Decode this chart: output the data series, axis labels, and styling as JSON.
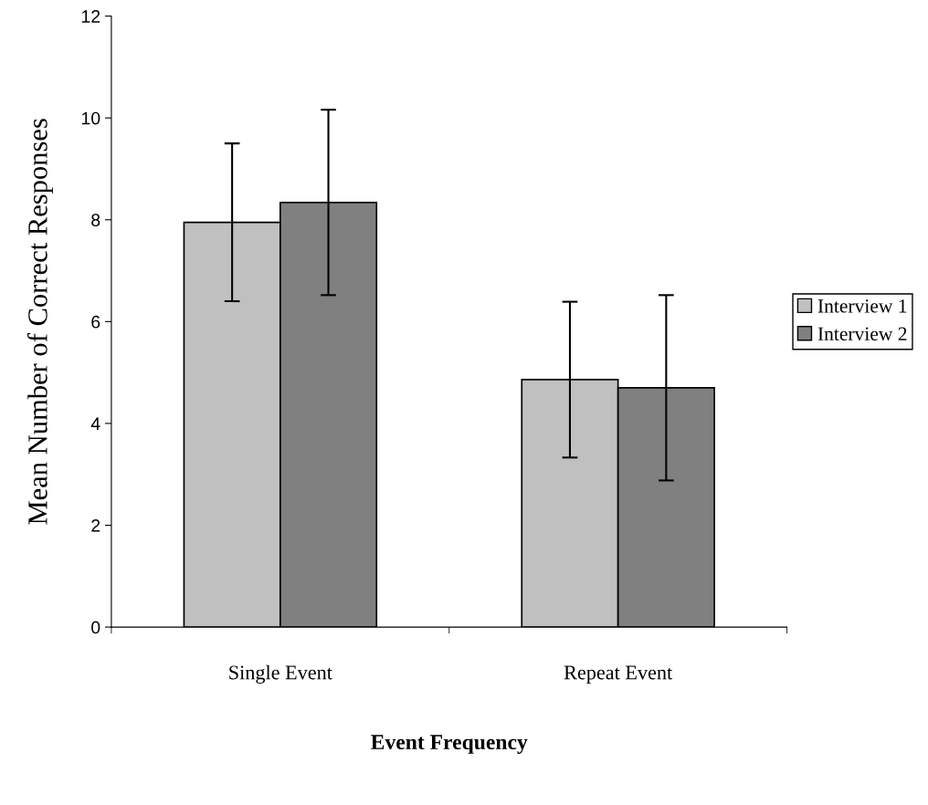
{
  "chart_data": {
    "type": "bar",
    "xlabel": "Event Frequency",
    "ylabel": "Mean Number of Correct Responses",
    "categories": [
      "Single Event",
      "Repeat Event"
    ],
    "series": [
      {
        "name": "Interview 1",
        "color": "#c0c0c0",
        "values": [
          7.95,
          4.86
        ],
        "errors": [
          1.55,
          1.53
        ]
      },
      {
        "name": "Interview 2",
        "color": "#808080",
        "values": [
          8.34,
          4.7
        ],
        "errors": [
          1.82,
          1.82
        ]
      }
    ],
    "ylim": [
      0,
      12
    ],
    "yticks": [
      0,
      2,
      4,
      6,
      8,
      10,
      12
    ],
    "legend": "right",
    "grid": false
  }
}
